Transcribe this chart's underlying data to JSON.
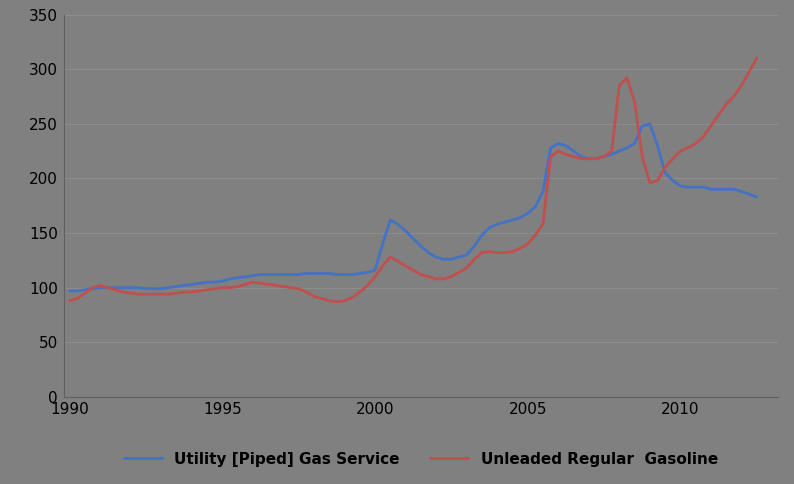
{
  "background_color": "#808080",
  "plot_bg_color": "#808080",
  "xlim": [
    1989.8,
    2013.2
  ],
  "ylim": [
    0,
    350
  ],
  "yticks": [
    0,
    50,
    100,
    150,
    200,
    250,
    300,
    350
  ],
  "xticks": [
    1990,
    1995,
    2000,
    2005,
    2010
  ],
  "legend_labels": [
    "Utility [Piped] Gas Service",
    "Unleaded Regular  Gasoline"
  ],
  "line_colors": [
    "#4472C4",
    "#C0504D"
  ],
  "line_width": 2.0,
  "utility_gas": {
    "years": [
      1990,
      1990.25,
      1990.5,
      1990.75,
      1991,
      1991.25,
      1991.5,
      1991.75,
      1992,
      1992.25,
      1992.5,
      1992.75,
      1993,
      1993.25,
      1993.5,
      1993.75,
      1994,
      1994.25,
      1994.5,
      1994.75,
      1995,
      1995.25,
      1995.5,
      1995.75,
      1996,
      1996.25,
      1996.5,
      1996.75,
      1997,
      1997.25,
      1997.5,
      1997.75,
      1998,
      1998.25,
      1998.5,
      1998.75,
      1999,
      1999.25,
      1999.5,
      1999.75,
      2000,
      2000.25,
      2000.5,
      2000.75,
      2001,
      2001.25,
      2001.5,
      2001.75,
      2002,
      2002.25,
      2002.5,
      2002.75,
      2003,
      2003.25,
      2003.5,
      2003.75,
      2004,
      2004.25,
      2004.5,
      2004.75,
      2005,
      2005.25,
      2005.5,
      2005.75,
      2006,
      2006.25,
      2006.5,
      2006.75,
      2007,
      2007.25,
      2007.5,
      2007.75,
      2008,
      2008.25,
      2008.5,
      2008.75,
      2009,
      2009.25,
      2009.5,
      2009.75,
      2010,
      2010.25,
      2010.5,
      2010.75,
      2011,
      2011.25,
      2011.5,
      2011.75,
      2012,
      2012.5
    ],
    "values": [
      97,
      97,
      98,
      99,
      100,
      100,
      100,
      100,
      100,
      100,
      99,
      99,
      99,
      100,
      101,
      102,
      103,
      104,
      105,
      105,
      106,
      108,
      109,
      110,
      111,
      112,
      112,
      112,
      112,
      112,
      112,
      113,
      113,
      113,
      113,
      112,
      112,
      112,
      113,
      114,
      116,
      140,
      162,
      158,
      152,
      145,
      138,
      132,
      128,
      126,
      126,
      128,
      130,
      138,
      148,
      155,
      158,
      160,
      162,
      164,
      168,
      174,
      188,
      228,
      232,
      230,
      225,
      220,
      218,
      218,
      220,
      222,
      225,
      228,
      232,
      248,
      250,
      230,
      205,
      198,
      193,
      192,
      192,
      192,
      190,
      190,
      190,
      190,
      188,
      183
    ]
  },
  "gasoline": {
    "years": [
      1990,
      1990.25,
      1990.5,
      1990.75,
      1991,
      1991.25,
      1991.5,
      1991.75,
      1992,
      1992.25,
      1992.5,
      1992.75,
      1993,
      1993.25,
      1993.5,
      1993.75,
      1994,
      1994.25,
      1994.5,
      1994.75,
      1995,
      1995.25,
      1995.5,
      1995.75,
      1996,
      1996.25,
      1996.5,
      1996.75,
      1997,
      1997.25,
      1997.5,
      1997.75,
      1998,
      1998.25,
      1998.5,
      1998.75,
      1999,
      1999.25,
      1999.5,
      1999.75,
      2000,
      2000.25,
      2000.5,
      2000.75,
      2001,
      2001.25,
      2001.5,
      2001.75,
      2002,
      2002.25,
      2002.5,
      2002.75,
      2003,
      2003.25,
      2003.5,
      2003.75,
      2004,
      2004.25,
      2004.5,
      2004.75,
      2005,
      2005.25,
      2005.5,
      2005.75,
      2006,
      2006.25,
      2006.5,
      2006.75,
      2007,
      2007.25,
      2007.5,
      2007.75,
      2008,
      2008.25,
      2008.5,
      2008.75,
      2009,
      2009.25,
      2009.5,
      2009.75,
      2010,
      2010.25,
      2010.5,
      2010.75,
      2011,
      2011.25,
      2011.5,
      2011.75,
      2012,
      2012.5
    ],
    "values": [
      88,
      90,
      95,
      100,
      102,
      100,
      98,
      96,
      95,
      94,
      94,
      94,
      94,
      94,
      95,
      96,
      96,
      97,
      98,
      99,
      100,
      100,
      101,
      103,
      105,
      104,
      103,
      102,
      101,
      100,
      99,
      96,
      92,
      90,
      88,
      87,
      88,
      91,
      96,
      102,
      110,
      120,
      128,
      124,
      120,
      116,
      112,
      110,
      108,
      108,
      110,
      114,
      118,
      126,
      132,
      133,
      132,
      132,
      133,
      136,
      140,
      148,
      158,
      220,
      225,
      222,
      220,
      218,
      218,
      218,
      220,
      225,
      285,
      292,
      270,
      220,
      196,
      198,
      210,
      218,
      225,
      228,
      232,
      238,
      248,
      258,
      268,
      275,
      285,
      310
    ]
  }
}
